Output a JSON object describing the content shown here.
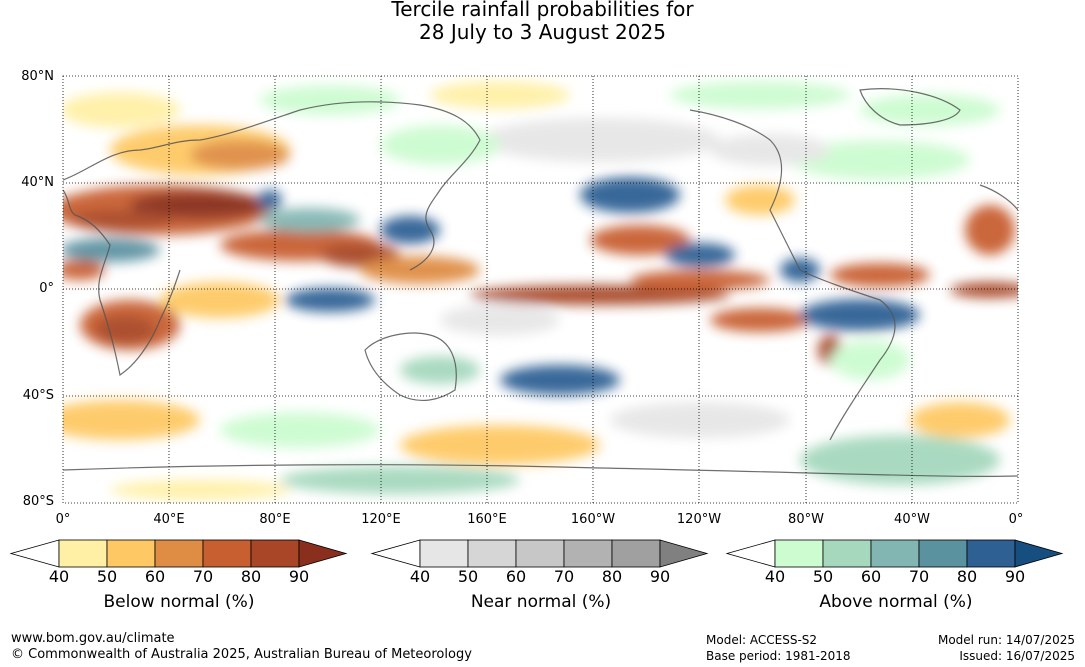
{
  "title_line1": "Tercile rainfall probabilities for",
  "title_line2": "28 July to 3 August 2025",
  "lat_labels": [
    "80°N",
    "40°N",
    "0°",
    "40°S",
    "80°S"
  ],
  "lon_labels": [
    "0°",
    "40°E",
    "80°E",
    "120°E",
    "160°E",
    "160°W",
    "120°W",
    "80°W",
    "40°W",
    "0°"
  ],
  "colorbars": [
    {
      "title": "Below normal (%)",
      "ticks": [
        "40",
        "50",
        "60",
        "70",
        "80",
        "90"
      ],
      "colors": [
        "#fff0a6",
        "#fec965",
        "#df8d45",
        "#c85f31",
        "#a84627",
        "#8a2e1d"
      ]
    },
    {
      "title": "Near normal (%)",
      "ticks": [
        "40",
        "50",
        "60",
        "70",
        "80",
        "90"
      ],
      "colors": [
        "#e6e6e6",
        "#d6d6d6",
        "#c7c7c7",
        "#b2b2b2",
        "#a0a0a0",
        "#808080"
      ]
    },
    {
      "title": "Above normal (%)",
      "ticks": [
        "40",
        "50",
        "60",
        "70",
        "80",
        "90"
      ],
      "colors": [
        "#ccfcd0",
        "#a5d8bd",
        "#82b6b2",
        "#5b92a0",
        "#2f6094",
        "#174e80"
      ]
    }
  ],
  "footer": {
    "website": "www.bom.gov.au/climate",
    "copyright": "© Commonwealth of Australia 2025, Australian Bureau of Meteorology",
    "model": "Model: ACCESS-S2",
    "base_period": "Base period: 1981-2018",
    "model_run": "Model run: 14/07/2025",
    "issued": "Issued: 16/07/2025"
  }
}
